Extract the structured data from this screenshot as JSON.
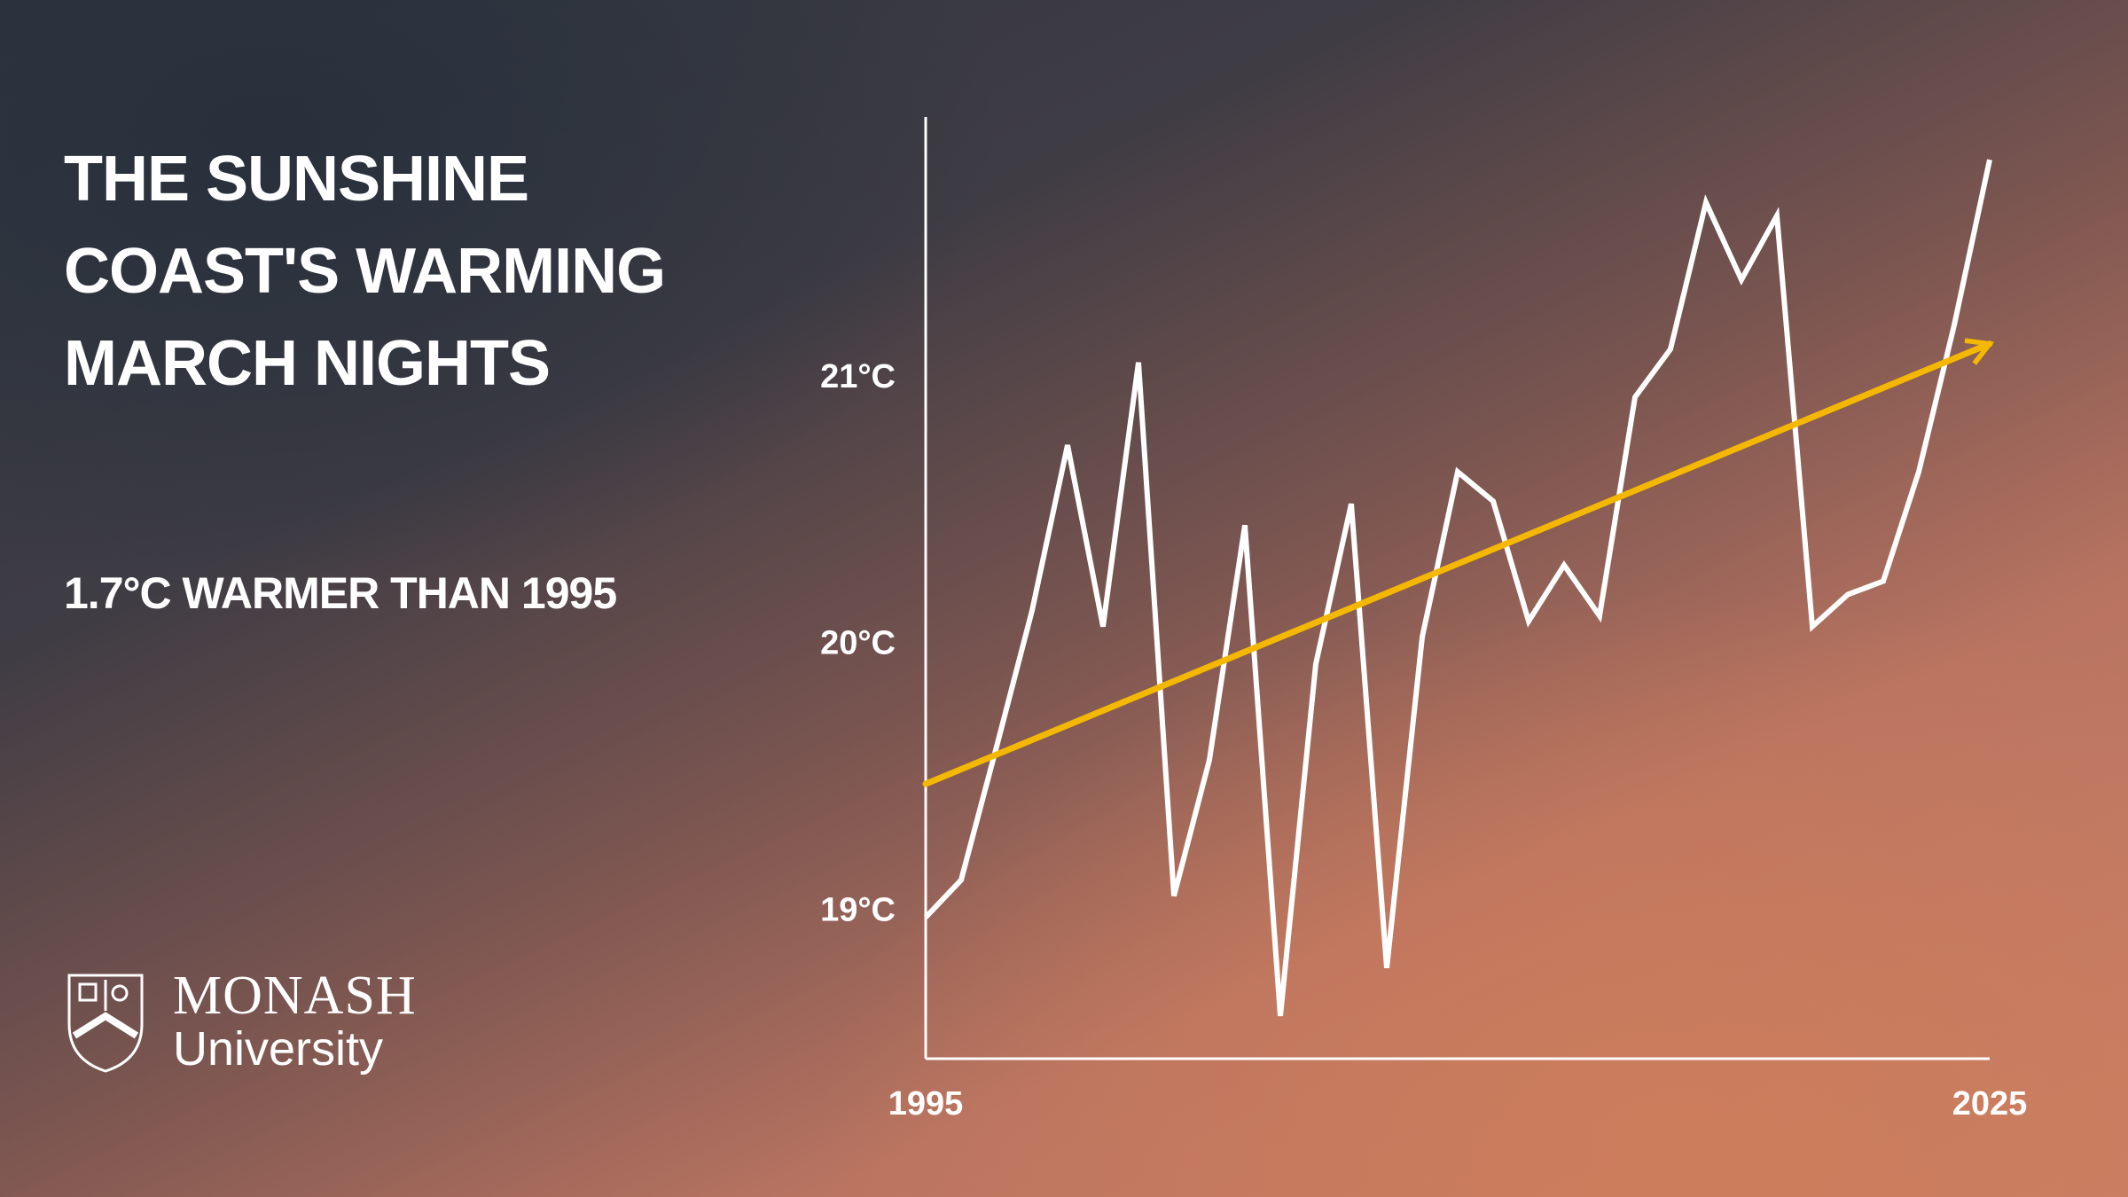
{
  "chart_data": {
    "type": "line",
    "title": "THE SUNSHINE COAST'S WARMING MARCH NIGHTS",
    "subtitle": "1.7°C WARMER THAN 1995",
    "x": [
      1995,
      1996,
      1997,
      1998,
      1999,
      2000,
      2001,
      2002,
      2003,
      2004,
      2005,
      2006,
      2007,
      2008,
      2009,
      2010,
      2011,
      2012,
      2013,
      2014,
      2015,
      2016,
      2017,
      2018,
      2019,
      2020,
      2021,
      2022,
      2023,
      2024,
      2025
    ],
    "series": [
      {
        "color": "#ffffff",
        "values": [
          18.98,
          19.12,
          19.62,
          20.13,
          20.75,
          20.07,
          21.06,
          19.06,
          19.57,
          20.45,
          18.61,
          19.93,
          20.53,
          18.79,
          20.03,
          20.65,
          20.54,
          20.09,
          20.3,
          20.11,
          20.93,
          21.11,
          21.66,
          21.37,
          21.61,
          20.07,
          20.19,
          20.24,
          20.65,
          21.2,
          21.82
        ]
      }
    ],
    "trend": {
      "x": [
        1995,
        2025
      ],
      "values": [
        19.48,
        21.13
      ],
      "color": "#f5b800"
    },
    "xlim": [
      1995,
      2025
    ],
    "xticks": [
      1995,
      2025
    ],
    "ylim": [
      18.45,
      21.98
    ],
    "yticks": [
      {
        "value": 19,
        "label": "19°C"
      },
      {
        "value": 20,
        "label": "20°C"
      },
      {
        "value": 21,
        "label": "21°C"
      }
    ],
    "grid": false
  },
  "logo": {
    "name": "MONASH",
    "sub": "University"
  }
}
